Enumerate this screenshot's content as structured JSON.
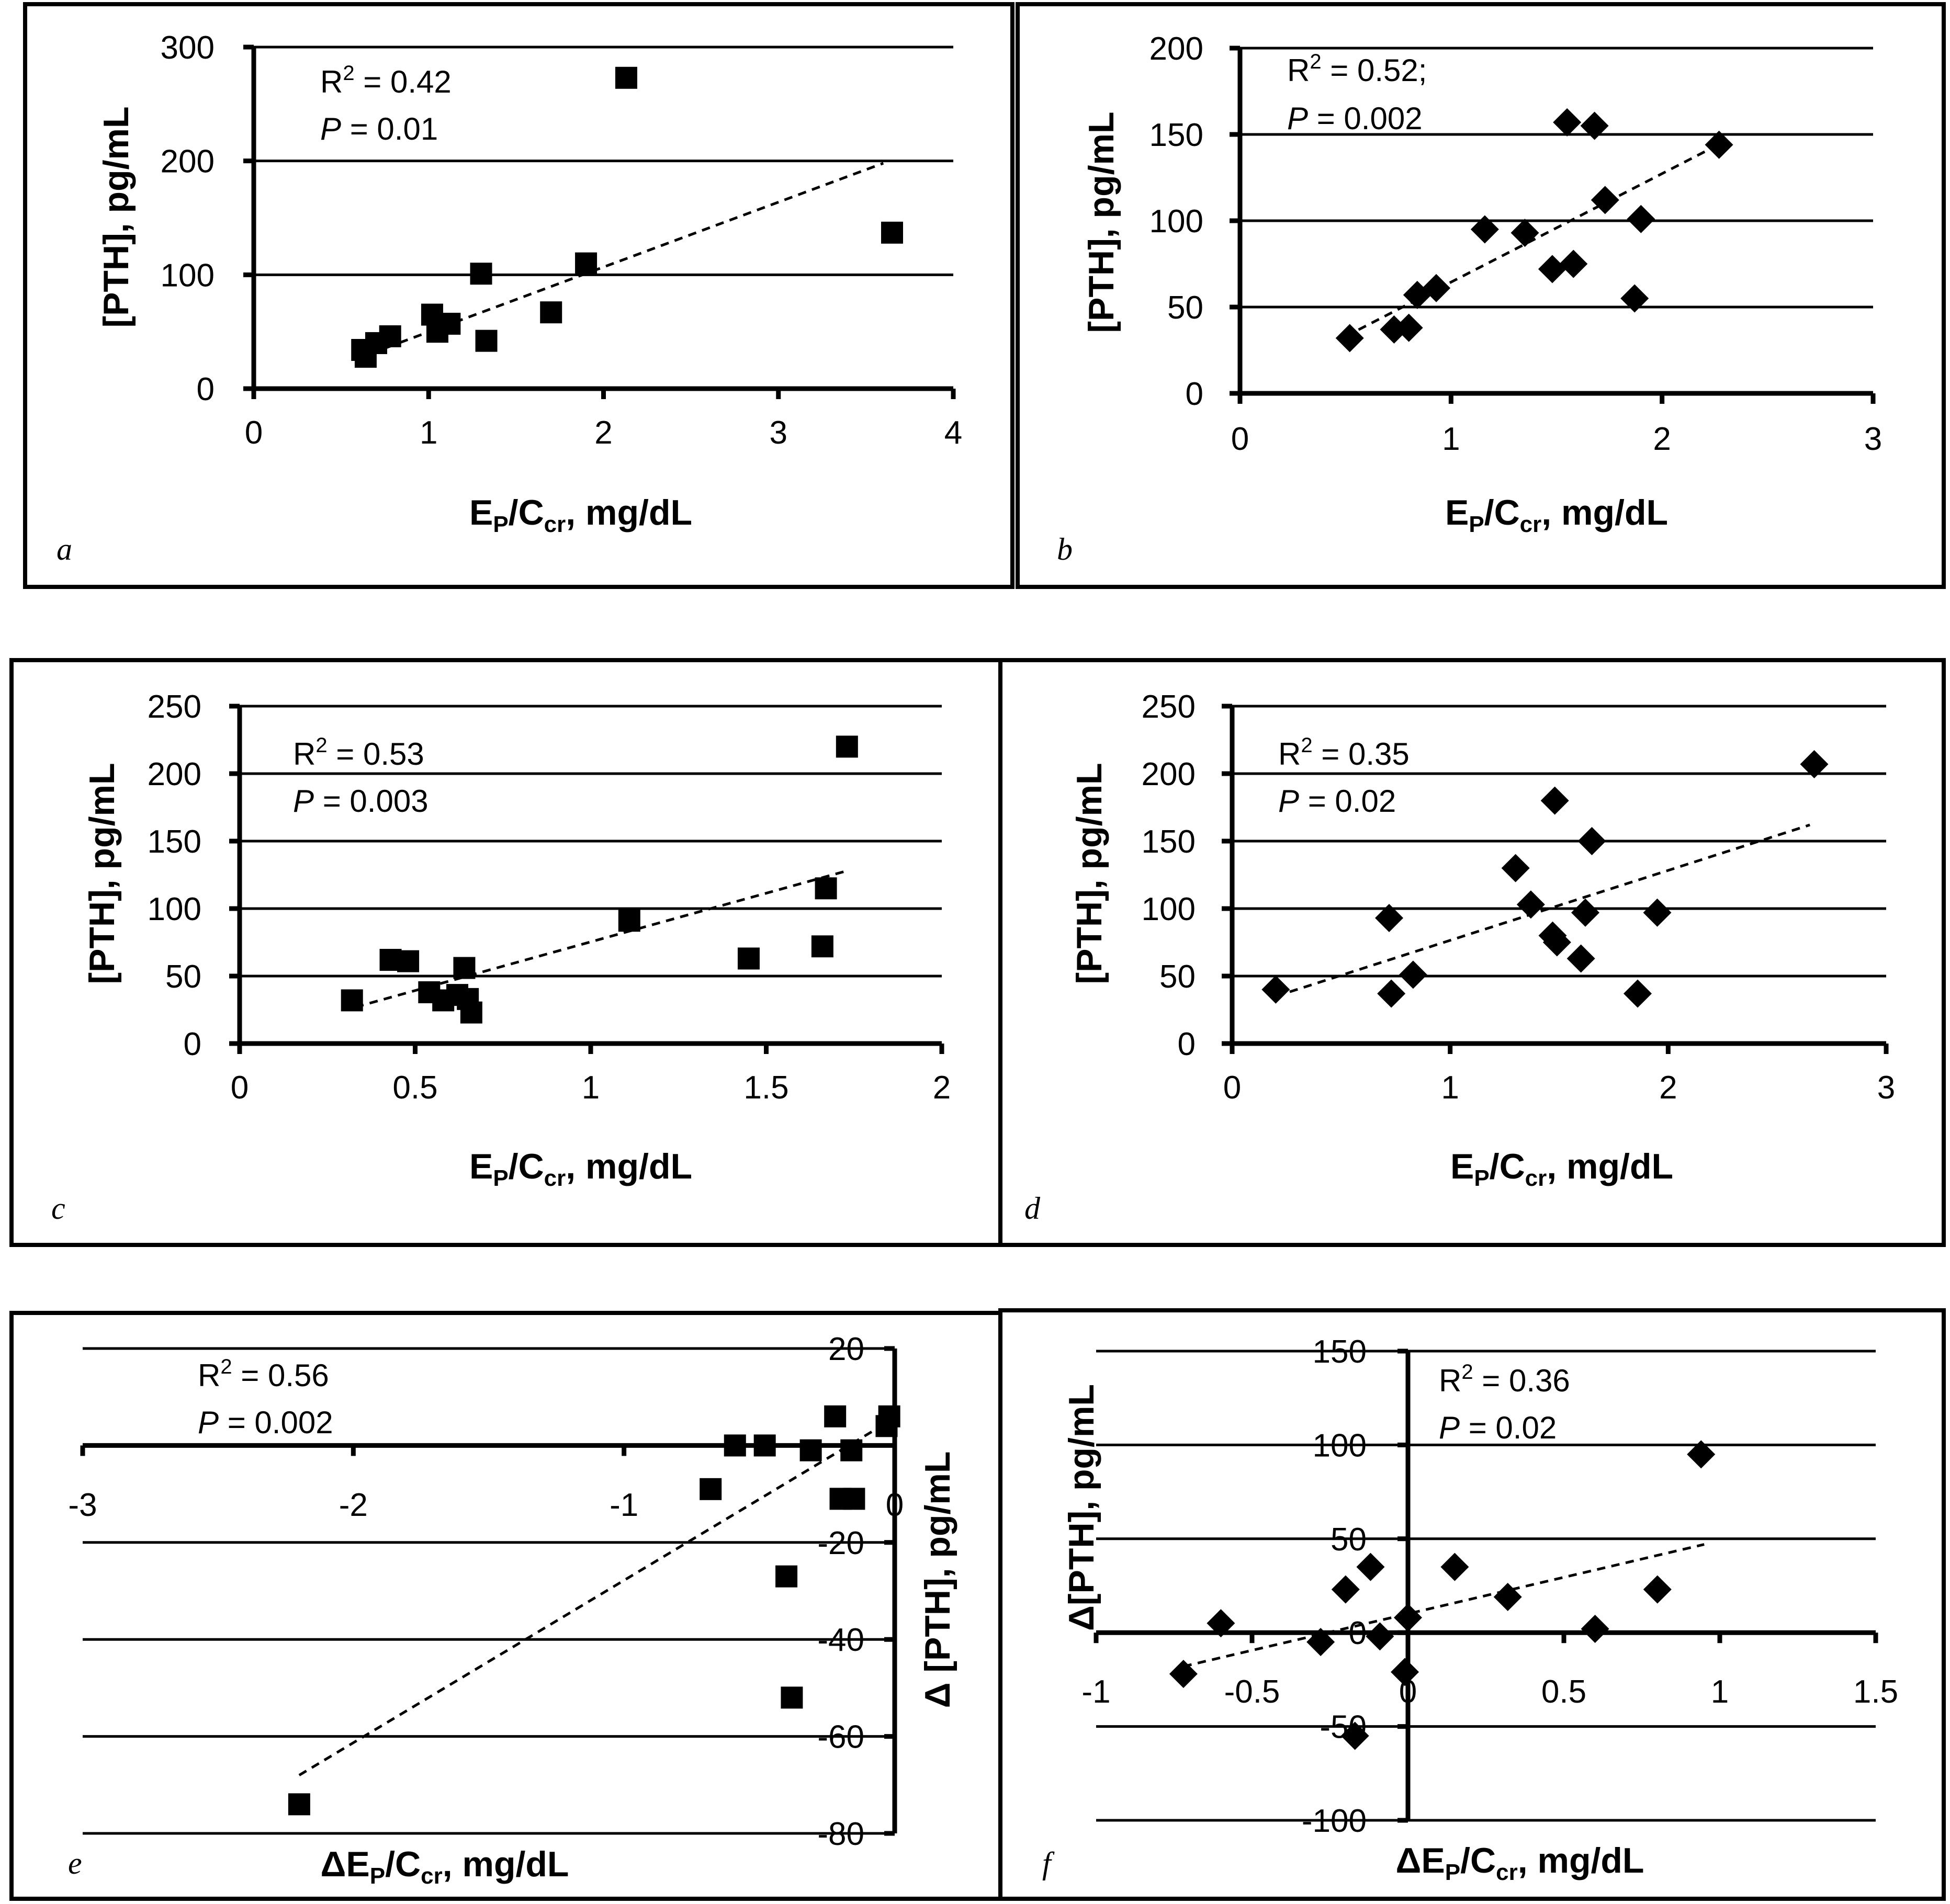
{
  "chart_data": [
    {
      "panel": "a",
      "type": "scatter",
      "marker": "square",
      "xlabel": "E_P/C_cr, mg/dL",
      "ylabel": "[PTH], pg/mL",
      "xlim": [
        0,
        4
      ],
      "ylim": [
        0,
        300
      ],
      "xticks": [
        0,
        1,
        2,
        3,
        4
      ],
      "yticks": [
        0,
        100,
        200,
        300
      ],
      "xtick_labels": [
        "0",
        "1",
        "2",
        "3",
        "4"
      ],
      "ytick_labels": [
        "0",
        "100",
        "200",
        "300"
      ],
      "r2_text": "= 0.42",
      "p_text": "= 0.01",
      "points": [
        [
          0.62,
          34
        ],
        [
          0.64,
          28
        ],
        [
          0.7,
          40
        ],
        [
          0.78,
          46
        ],
        [
          1.02,
          65
        ],
        [
          1.05,
          50
        ],
        [
          1.12,
          57
        ],
        [
          1.3,
          101
        ],
        [
          1.33,
          42
        ],
        [
          1.7,
          67
        ],
        [
          1.9,
          110
        ],
        [
          2.13,
          273
        ],
        [
          3.65,
          137
        ]
      ],
      "trend": [
        [
          0.6,
          27
        ],
        [
          3.6,
          198
        ]
      ]
    },
    {
      "panel": "b",
      "type": "scatter",
      "marker": "diamond",
      "xlabel": "E_P/C_cr, mg/dL",
      "ylabel": "[PTH], pg/mL",
      "xlim": [
        0,
        3
      ],
      "ylim": [
        0,
        200
      ],
      "xticks": [
        0,
        1,
        2,
        3
      ],
      "yticks": [
        0,
        50,
        100,
        150,
        200
      ],
      "xtick_labels": [
        "0",
        "1",
        "2",
        "3"
      ],
      "ytick_labels": [
        "0",
        "50",
        "100",
        "150",
        "200"
      ],
      "r2_text": "= 0.52;",
      "p_text": "= 0.002",
      "points": [
        [
          0.52,
          32
        ],
        [
          0.73,
          37
        ],
        [
          0.8,
          38
        ],
        [
          0.84,
          57
        ],
        [
          0.93,
          61
        ],
        [
          1.16,
          95
        ],
        [
          1.35,
          93
        ],
        [
          1.48,
          72
        ],
        [
          1.55,
          157
        ],
        [
          1.58,
          75
        ],
        [
          1.68,
          155
        ],
        [
          1.73,
          112
        ],
        [
          1.87,
          55
        ],
        [
          1.9,
          101
        ],
        [
          2.27,
          144
        ]
      ],
      "trend": [
        [
          0.5,
          33
        ],
        [
          2.25,
          143
        ]
      ]
    },
    {
      "panel": "c",
      "type": "scatter",
      "marker": "square",
      "xlabel": "E_P/C_cr, mg/dL",
      "ylabel": "[PTH], pg/mL",
      "xlim": [
        0,
        2
      ],
      "ylim": [
        0,
        250
      ],
      "xticks": [
        0,
        0.5,
        1,
        1.5,
        2
      ],
      "yticks": [
        0,
        50,
        100,
        150,
        200,
        250
      ],
      "xtick_labels": [
        "0",
        "0.5",
        "1",
        "1.5",
        "2"
      ],
      "ytick_labels": [
        "0",
        "50",
        "100",
        "150",
        "200",
        "250"
      ],
      "r2_text": "= 0.53",
      "p_text": "= 0.003",
      "points": [
        [
          0.32,
          32
        ],
        [
          0.43,
          62
        ],
        [
          0.48,
          61
        ],
        [
          0.54,
          38
        ],
        [
          0.58,
          32
        ],
        [
          0.62,
          36
        ],
        [
          0.64,
          56
        ],
        [
          0.65,
          33
        ],
        [
          0.66,
          23
        ],
        [
          1.11,
          91
        ],
        [
          1.45,
          63
        ],
        [
          1.66,
          72
        ],
        [
          1.67,
          115
        ],
        [
          1.73,
          220
        ]
      ],
      "trend": [
        [
          0.33,
          27
        ],
        [
          1.73,
          128
        ]
      ]
    },
    {
      "panel": "d",
      "type": "scatter",
      "marker": "diamond",
      "xlabel": "E_P/C_cr, mg/dL",
      "ylabel": "[PTH], pg/mL",
      "xlim": [
        0,
        3
      ],
      "ylim": [
        0,
        250
      ],
      "xticks": [
        0,
        1,
        2,
        3
      ],
      "yticks": [
        0,
        50,
        100,
        150,
        200,
        250
      ],
      "xtick_labels": [
        "0",
        "1",
        "2",
        "3"
      ],
      "ytick_labels": [
        "0",
        "50",
        "100",
        "150",
        "200",
        "250"
      ],
      "r2_text": "= 0.35",
      "p_text": "= 0.02",
      "points": [
        [
          0.2,
          40
        ],
        [
          0.72,
          93
        ],
        [
          0.73,
          37
        ],
        [
          0.83,
          51
        ],
        [
          1.3,
          130
        ],
        [
          1.37,
          103
        ],
        [
          1.47,
          80
        ],
        [
          1.48,
          180
        ],
        [
          1.49,
          75
        ],
        [
          1.6,
          63
        ],
        [
          1.62,
          97
        ],
        [
          1.65,
          150
        ],
        [
          1.86,
          37
        ],
        [
          1.95,
          97
        ],
        [
          2.67,
          207
        ]
      ],
      "trend": [
        [
          0.2,
          35
        ],
        [
          2.65,
          162
        ]
      ]
    },
    {
      "panel": "e",
      "type": "scatter",
      "marker": "square",
      "xlabel": "ΔE_P/C_cr, mg/dL",
      "ylabel": "Δ [PTH], pg/mL",
      "xlim": [
        -3,
        0
      ],
      "ylim": [
        -80,
        20
      ],
      "xticks": [
        -3,
        -2,
        -1,
        0
      ],
      "yticks": [
        -80,
        -60,
        -40,
        -20,
        20
      ],
      "xtick_labels": [
        "-3",
        "-2",
        "-1",
        "0"
      ],
      "ytick_labels": [
        "-80",
        "-60",
        "-40",
        "-20",
        "20"
      ],
      "r2_text": "= 0.56",
      "p_text": "= 0.002",
      "points": [
        [
          -2.2,
          -74
        ],
        [
          -0.68,
          -9
        ],
        [
          -0.59,
          0
        ],
        [
          -0.48,
          0
        ],
        [
          -0.4,
          -27
        ],
        [
          -0.38,
          -52
        ],
        [
          -0.31,
          -1
        ],
        [
          -0.22,
          6
        ],
        [
          -0.2,
          -11
        ],
        [
          -0.16,
          -1
        ],
        [
          -0.15,
          -11
        ],
        [
          -0.03,
          4
        ],
        [
          -0.02,
          6
        ]
      ],
      "trend": [
        [
          -2.2,
          -68
        ],
        [
          -0.02,
          5
        ]
      ]
    },
    {
      "panel": "f",
      "type": "scatter",
      "marker": "diamond",
      "xlabel": "ΔE_P/C_cr, mg/dL",
      "ylabel": "Δ[PTH], pg/mL",
      "xlim": [
        -1,
        1.5
      ],
      "ylim": [
        -100,
        150
      ],
      "xticks": [
        -1,
        -0.5,
        0,
        0.5,
        1,
        1.5
      ],
      "yticks": [
        -100,
        -50,
        0,
        50,
        100,
        150
      ],
      "xtick_labels": [
        "-1",
        "-0.5",
        "0",
        "0.5",
        "1",
        "1.5"
      ],
      "ytick_labels": [
        "-100",
        "-50",
        "0",
        "50",
        "100",
        "150"
      ],
      "r2_text": "= 0.36",
      "p_text": "= 0.02",
      "points": [
        [
          -0.72,
          -22
        ],
        [
          -0.6,
          5
        ],
        [
          -0.28,
          -5
        ],
        [
          -0.2,
          23
        ],
        [
          -0.17,
          -55
        ],
        [
          -0.12,
          35
        ],
        [
          -0.09,
          -2
        ],
        [
          -0.01,
          -21
        ],
        [
          0,
          8
        ],
        [
          0.15,
          35
        ],
        [
          0.32,
          19
        ],
        [
          0.6,
          2
        ],
        [
          0.8,
          23
        ],
        [
          0.94,
          95
        ]
      ],
      "trend": [
        [
          -0.72,
          -18
        ],
        [
          0.95,
          47
        ]
      ]
    }
  ]
}
